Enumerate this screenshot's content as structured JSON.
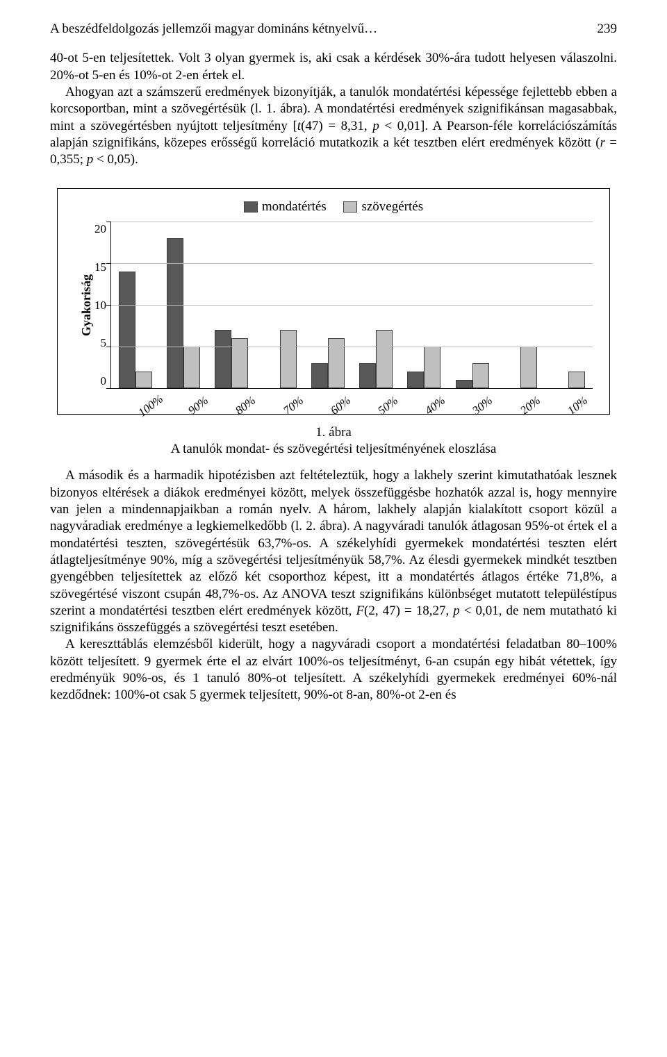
{
  "header": {
    "title": "A beszédfeldolgozás jellemzői magyar domináns kétnyelvű…",
    "page_number": "239"
  },
  "para1": "40-ot 5-en teljesítettek. Volt 3 olyan gyermek is, aki csak a kérdések 30%-ára tudott helyesen válaszolni. 20%-ot 5-en és 10%-ot 2-en értek el.",
  "para2_a": "Ahogyan azt a számszerű eredmények bizonyítják, a tanulók mondatértési képessége fejlettebb ebben a korcsoportban, mint a szövegértésük (l. 1. ábra). A mondatértési eredmények szignifikánsan magasabbak, mint a szövegértésben nyújtott teljesítmény [",
  "para2_stat1_t": "t",
  "para2_stat1_rest": "(47) = 8,31, ",
  "para2_stat1_p": "p",
  "para2_stat1_end": " < 0,01]. A Pearson-féle korrelációszámítás alapján szignifikáns, közepes erősségű korreláció mutatkozik a két tesztben elért eredmények között (",
  "para2_r": "r",
  "para2_rval": " = 0,355; ",
  "para2_p2": "p",
  "para2_end": " < 0,05).",
  "chart": {
    "type": "bar",
    "legend": {
      "series1": "mondatértés",
      "series2": "szövegértés"
    },
    "series_colors": {
      "series1": "#595959",
      "series2": "#bfbfbf"
    },
    "ylabel": "Gyakoriság",
    "ylim_max": 20,
    "yticks": [
      20,
      15,
      10,
      5,
      0
    ],
    "grid_color": "#bcbcbc",
    "categories": [
      "100%",
      "90%",
      "80%",
      "70%",
      "60%",
      "50%",
      "40%",
      "30%",
      "20%",
      "10%"
    ],
    "series1_values": [
      14,
      18,
      7,
      0,
      3,
      3,
      2,
      1,
      0,
      0
    ],
    "series2_values": [
      2,
      5,
      6,
      7,
      6,
      7,
      5,
      3,
      5,
      2
    ]
  },
  "caption_line1": "1. ábra",
  "caption_line2": "A tanulók mondat- és szövegértési teljesítményének eloszlása",
  "para3_a": "A második és a harmadik hipotézisben azt feltételeztük, hogy a lakhely szerint kimutathatóak lesznek bizonyos eltérések a diákok eredményei között, melyek összefüggésbe hozhatók azzal is, hogy mennyire van jelen a mindennapjaikban a román nyelv. A három, lakhely alapján kialakított csoport közül a nagyváradiak eredménye a legkiemelkedőbb (l. 2. ábra). A nagyváradi tanulók átlagosan 95%-ot értek el a mondatértési teszten, szövegértésük 63,7%-os. A székelyhídi gyermekek mondatértési teszten elért átlagteljesítménye 90%, míg a szövegértési teljesítményük 58,7%. Az élesdi gyermekek mindkét tesztben gyengébben teljesítettek az előző két csoporthoz képest, itt a mondatértés átlagos értéke 71,8%, a szövegértésé viszont csupán 48,7%-os. Az ANOVA teszt szignifikáns különbséget mutatott településtípus szerint a mondatértési tesztben elért eredmények között, ",
  "para3_F": "F",
  "para3_Fval": "(2, 47) = 18,27, ",
  "para3_p": "p",
  "para3_b": " < 0,01, de nem mutatható ki szignifikáns összefüggés a szövegértési teszt esetében.",
  "para4": "A kereszttáblás elemzésből kiderült, hogy a nagyváradi csoport a mondatértési feladatban 80–100% között teljesített. 9 gyermek érte el az elvárt 100%-os teljesítményt, 6-an csupán egy hibát vétettek, így eredményük 90%-os, és 1 tanuló 80%-ot teljesített. A székelyhídi gyermekek eredményei 60%-nál kezdődnek: 100%-ot csak 5 gyermek teljesített, 90%-ot 8-an, 80%-ot 2-en és"
}
